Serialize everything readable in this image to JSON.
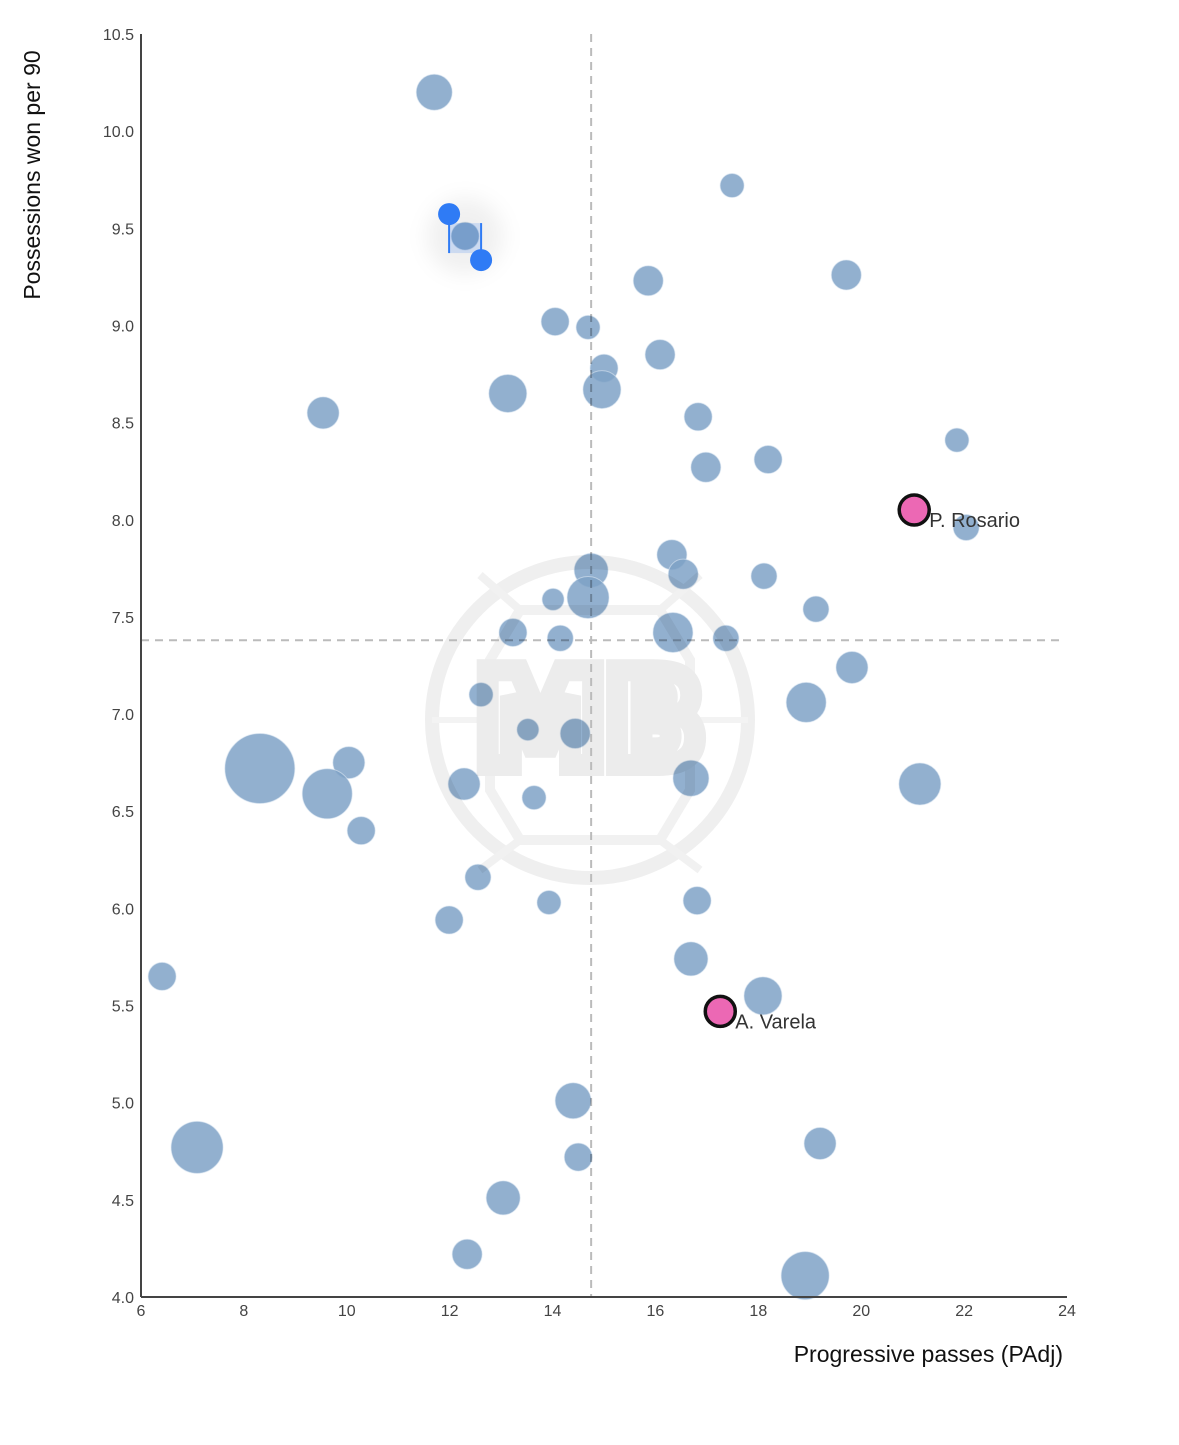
{
  "chart_data": {
    "type": "scatter",
    "title": "",
    "xlabel": "Progressive passes (PAdj)",
    "ylabel": "Possessions won per 90",
    "xlim": [
      6,
      24
    ],
    "ylim": [
      4.0,
      10.5
    ],
    "xticks": [
      "6",
      "8",
      "10",
      "12",
      "14",
      "16",
      "18",
      "20",
      "22",
      "24"
    ],
    "xtick_values": [
      6,
      8,
      10,
      12,
      14,
      16,
      18,
      20,
      22,
      24
    ],
    "yticks": [
      "4.0",
      "4.5",
      "5.0",
      "5.5",
      "6.0",
      "6.5",
      "7.0",
      "7.5",
      "8.0",
      "8.5",
      "9.0",
      "9.5",
      "10.0",
      "10.5"
    ],
    "ytick_values": [
      4.0,
      4.5,
      5.0,
      5.5,
      6.0,
      6.5,
      7.0,
      7.5,
      8.0,
      8.5,
      9.0,
      9.5,
      10.0,
      10.5
    ],
    "grid": false,
    "reference_lines": {
      "x_mean": 14.75,
      "y_mean": 7.38,
      "style": "dashed"
    },
    "colors": {
      "bubble": "#7fa2c7",
      "highlight": "#ec68b4",
      "highlight_stroke": "#111111",
      "reference_line": "#bbbbbb",
      "selection": "#2f7bf5"
    },
    "watermark": "MB",
    "series": [
      {
        "name": "players",
        "points": [
          {
            "x": 11.7,
            "y": 10.2,
            "size": 18
          },
          {
            "x": 12.3,
            "y": 9.46,
            "size": 14,
            "selected": true
          },
          {
            "x": 17.49,
            "y": 9.72,
            "size": 12
          },
          {
            "x": 15.86,
            "y": 9.23,
            "size": 15
          },
          {
            "x": 19.71,
            "y": 9.26,
            "size": 15
          },
          {
            "x": 14.05,
            "y": 9.02,
            "size": 14
          },
          {
            "x": 14.69,
            "y": 8.99,
            "size": 12
          },
          {
            "x": 16.09,
            "y": 8.85,
            "size": 15
          },
          {
            "x": 15.0,
            "y": 8.78,
            "size": 14
          },
          {
            "x": 14.96,
            "y": 8.67,
            "size": 19
          },
          {
            "x": 13.13,
            "y": 8.65,
            "size": 19
          },
          {
            "x": 9.54,
            "y": 8.55,
            "size": 16
          },
          {
            "x": 16.83,
            "y": 8.53,
            "size": 14
          },
          {
            "x": 18.19,
            "y": 8.31,
            "size": 14
          },
          {
            "x": 16.98,
            "y": 8.27,
            "size": 15
          },
          {
            "x": 21.86,
            "y": 8.41,
            "size": 12
          },
          {
            "x": 22.04,
            "y": 7.96,
            "size": 13
          },
          {
            "x": 16.32,
            "y": 7.82,
            "size": 15
          },
          {
            "x": 16.54,
            "y": 7.72,
            "size": 15
          },
          {
            "x": 14.75,
            "y": 7.74,
            "size": 17
          },
          {
            "x": 14.69,
            "y": 7.6,
            "size": 21
          },
          {
            "x": 14.01,
            "y": 7.59,
            "size": 11
          },
          {
            "x": 18.11,
            "y": 7.71,
            "size": 13
          },
          {
            "x": 19.12,
            "y": 7.54,
            "size": 13
          },
          {
            "x": 13.23,
            "y": 7.42,
            "size": 14
          },
          {
            "x": 14.15,
            "y": 7.39,
            "size": 13
          },
          {
            "x": 16.34,
            "y": 7.42,
            "size": 20
          },
          {
            "x": 17.37,
            "y": 7.39,
            "size": 13
          },
          {
            "x": 19.82,
            "y": 7.24,
            "size": 16
          },
          {
            "x": 12.61,
            "y": 7.1,
            "size": 12
          },
          {
            "x": 18.93,
            "y": 7.06,
            "size": 20
          },
          {
            "x": 13.52,
            "y": 6.92,
            "size": 11
          },
          {
            "x": 14.44,
            "y": 6.9,
            "size": 15
          },
          {
            "x": 8.31,
            "y": 6.72,
            "size": 35
          },
          {
            "x": 10.04,
            "y": 6.75,
            "size": 16
          },
          {
            "x": 9.62,
            "y": 6.59,
            "size": 25
          },
          {
            "x": 12.28,
            "y": 6.64,
            "size": 16
          },
          {
            "x": 13.64,
            "y": 6.57,
            "size": 12
          },
          {
            "x": 16.69,
            "y": 6.67,
            "size": 18
          },
          {
            "x": 21.14,
            "y": 6.64,
            "size": 21
          },
          {
            "x": 10.28,
            "y": 6.4,
            "size": 14
          },
          {
            "x": 12.55,
            "y": 6.16,
            "size": 13
          },
          {
            "x": 11.99,
            "y": 5.94,
            "size": 14
          },
          {
            "x": 13.93,
            "y": 6.03,
            "size": 12
          },
          {
            "x": 16.81,
            "y": 6.04,
            "size": 14
          },
          {
            "x": 16.69,
            "y": 5.74,
            "size": 17
          },
          {
            "x": 6.41,
            "y": 5.65,
            "size": 14
          },
          {
            "x": 18.09,
            "y": 5.55,
            "size": 19
          },
          {
            "x": 14.4,
            "y": 5.01,
            "size": 18
          },
          {
            "x": 14.5,
            "y": 4.72,
            "size": 14
          },
          {
            "x": 19.2,
            "y": 4.79,
            "size": 16
          },
          {
            "x": 7.09,
            "y": 4.77,
            "size": 26
          },
          {
            "x": 13.04,
            "y": 4.51,
            "size": 17
          },
          {
            "x": 12.34,
            "y": 4.22,
            "size": 15
          },
          {
            "x": 18.91,
            "y": 4.11,
            "size": 24
          }
        ]
      },
      {
        "name": "highlighted",
        "points": [
          {
            "x": 21.03,
            "y": 8.05,
            "label": "P. Rosario"
          },
          {
            "x": 17.26,
            "y": 5.47,
            "label": "A. Varela"
          }
        ]
      }
    ]
  }
}
